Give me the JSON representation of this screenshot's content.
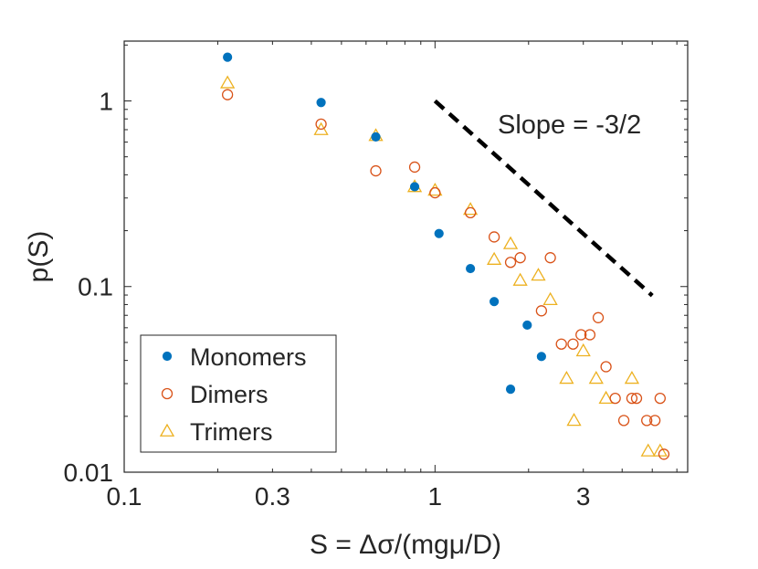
{
  "chart_data": {
    "type": "scatter",
    "xscale": "log",
    "yscale": "log",
    "xlabel": "S = Δσ/(mgμ/D)",
    "ylabel": "p(S)",
    "xlim": [
      0.1,
      6.5
    ],
    "ylim": [
      0.01,
      2.1
    ],
    "x_ticks": [
      {
        "value": 0.1,
        "label": "0.1"
      },
      {
        "value": 0.3,
        "label": "0.3"
      },
      {
        "value": 1,
        "label": "1"
      },
      {
        "value": 3,
        "label": "3"
      }
    ],
    "y_ticks": [
      {
        "value": 0.01,
        "label": "0.01"
      },
      {
        "value": 0.1,
        "label": "0.1"
      },
      {
        "value": 1,
        "label": "1"
      }
    ],
    "series": [
      {
        "name": "Monomers",
        "marker": "filled-circle",
        "color": "#0072BD",
        "points": [
          [
            0.215,
            1.72
          ],
          [
            0.43,
            0.98
          ],
          [
            0.645,
            0.64
          ],
          [
            0.86,
            0.345
          ],
          [
            1.03,
            0.193
          ],
          [
            1.3,
            0.125
          ],
          [
            1.55,
            0.083
          ],
          [
            1.98,
            0.062
          ],
          [
            1.75,
            0.028
          ],
          [
            2.2,
            0.042
          ]
        ]
      },
      {
        "name": "Dimers",
        "marker": "open-circle",
        "color": "#D95319",
        "points": [
          [
            0.215,
            1.08
          ],
          [
            0.43,
            0.75
          ],
          [
            0.645,
            0.42
          ],
          [
            0.86,
            0.44
          ],
          [
            1.0,
            0.32
          ],
          [
            1.3,
            0.25
          ],
          [
            1.55,
            0.185
          ],
          [
            1.75,
            0.135
          ],
          [
            1.88,
            0.143
          ],
          [
            2.2,
            0.074
          ],
          [
            2.35,
            0.143
          ],
          [
            2.55,
            0.049
          ],
          [
            2.78,
            0.049
          ],
          [
            2.95,
            0.055
          ],
          [
            3.15,
            0.055
          ],
          [
            3.35,
            0.068
          ],
          [
            3.55,
            0.037
          ],
          [
            3.8,
            0.025
          ],
          [
            4.05,
            0.019
          ],
          [
            4.3,
            0.025
          ],
          [
            4.45,
            0.025
          ],
          [
            4.8,
            0.019
          ],
          [
            5.1,
            0.019
          ],
          [
            5.3,
            0.025
          ],
          [
            5.45,
            0.0125
          ]
        ]
      },
      {
        "name": "Trimers",
        "marker": "open-triangle",
        "color": "#EDB120",
        "points": [
          [
            0.215,
            1.25
          ],
          [
            0.43,
            0.7
          ],
          [
            0.645,
            0.65
          ],
          [
            0.86,
            0.345
          ],
          [
            1.0,
            0.33
          ],
          [
            1.3,
            0.26
          ],
          [
            1.55,
            0.14
          ],
          [
            1.75,
            0.17
          ],
          [
            1.88,
            0.108
          ],
          [
            2.15,
            0.115
          ],
          [
            2.35,
            0.085
          ],
          [
            2.65,
            0.032
          ],
          [
            2.8,
            0.019
          ],
          [
            3.0,
            0.045
          ],
          [
            3.3,
            0.032
          ],
          [
            3.55,
            0.025
          ],
          [
            4.3,
            0.032
          ],
          [
            4.85,
            0.013
          ],
          [
            5.3,
            0.013
          ]
        ]
      }
    ],
    "reference_line": {
      "label": "Slope = -3/2",
      "style": "dashed",
      "color": "#000000",
      "start": [
        1.0,
        1.0
      ],
      "end": [
        5.0,
        0.0894
      ]
    },
    "legend": {
      "position": "bottom-left",
      "entries": [
        "Monomers",
        "Dimers",
        "Trimers"
      ]
    }
  }
}
